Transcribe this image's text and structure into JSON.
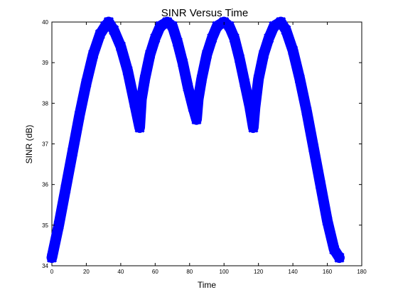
{
  "chart_data": {
    "type": "line",
    "title": "SINR Versus Time",
    "xlabel": "Time",
    "ylabel": "SINR (dB)",
    "xlim": [
      0,
      180
    ],
    "ylim": [
      34,
      40
    ],
    "x_ticks": [
      "0",
      "20",
      "40",
      "60",
      "80",
      "100",
      "120",
      "140",
      "160",
      "180"
    ],
    "y_ticks": [
      "34",
      "35",
      "36",
      "37",
      "38",
      "39",
      "40"
    ],
    "grid": false,
    "line_color": "#0000ff",
    "marker": "x",
    "series": [
      {
        "x": [
          0,
          4,
          8,
          12,
          16,
          20,
          24,
          28,
          31,
          33,
          36,
          40,
          44,
          48,
          51,
          52,
          54,
          57,
          60,
          63,
          67,
          70,
          73,
          76,
          79,
          82,
          84,
          85,
          87,
          90,
          93,
          96,
          100,
          103,
          106,
          109,
          112,
          115,
          117,
          118,
          120,
          123,
          126,
          129,
          133,
          136,
          140,
          144,
          148,
          152,
          156,
          160,
          164,
          167
        ],
        "y": [
          34.2,
          35.0,
          35.9,
          36.8,
          37.7,
          38.5,
          39.2,
          39.7,
          39.9,
          40.0,
          39.8,
          39.4,
          38.8,
          38.0,
          37.4,
          38.1,
          38.6,
          39.2,
          39.6,
          39.9,
          40.0,
          39.9,
          39.5,
          39.0,
          38.4,
          37.9,
          37.6,
          38.1,
          38.6,
          39.2,
          39.6,
          39.9,
          40.0,
          39.9,
          39.6,
          39.1,
          38.5,
          37.9,
          37.4,
          37.9,
          38.6,
          39.2,
          39.6,
          39.9,
          40.0,
          39.8,
          39.3,
          38.6,
          37.8,
          36.9,
          36.0,
          35.1,
          34.4,
          34.2
        ]
      }
    ]
  }
}
